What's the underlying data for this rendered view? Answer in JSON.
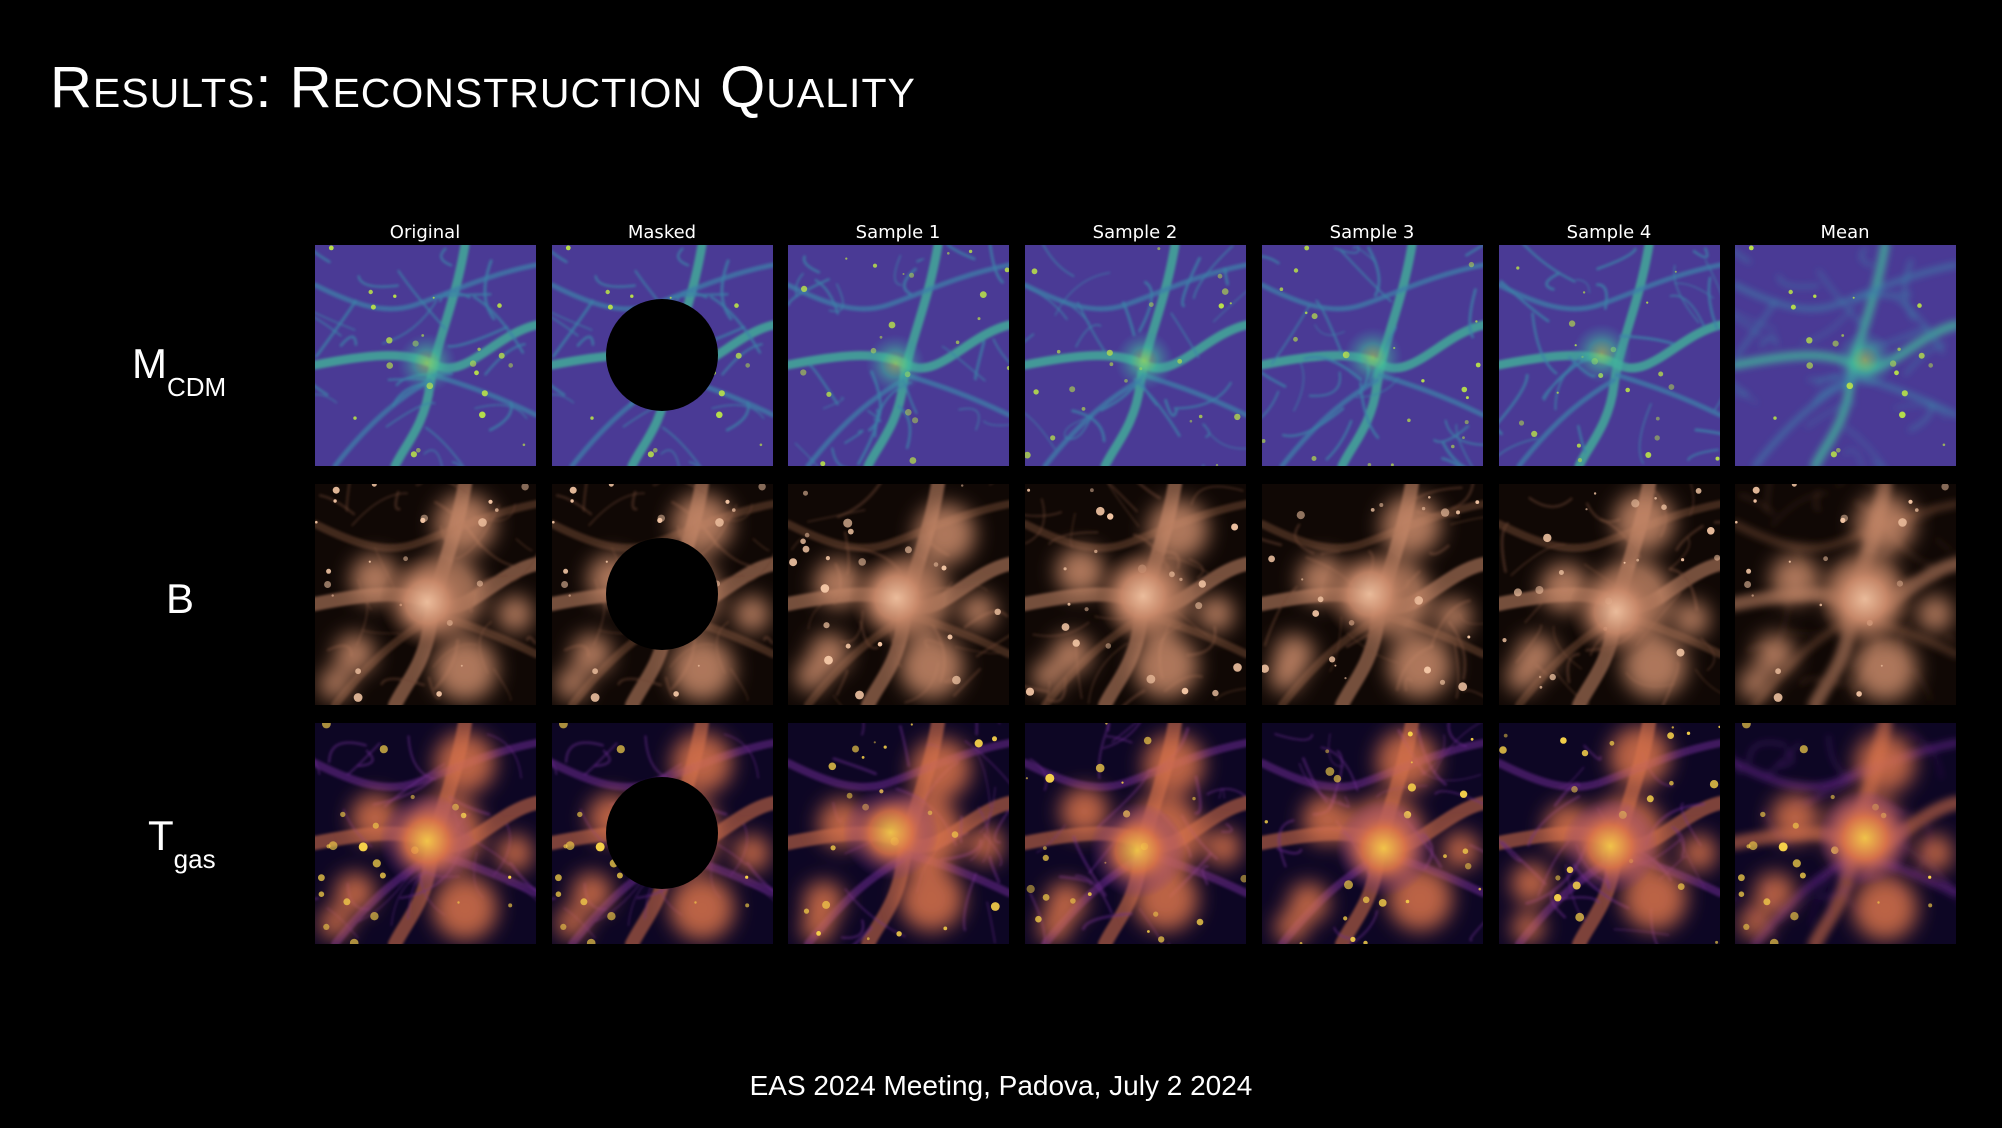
{
  "slide": {
    "title": "Results: Reconstruction Quality",
    "footer": "EAS 2024 Meeting, Padova, July 2 2024"
  },
  "columns": [
    "Original",
    "Masked",
    "Sample 1",
    "Sample 2",
    "Sample 3",
    "Sample 4",
    "Mean"
  ],
  "rows": [
    {
      "label": "M",
      "subscript": "CDM",
      "colormap": "viridis",
      "colors": {
        "background": "#4a3a95",
        "mid": "#3c7fa8",
        "filament": "#41b89a",
        "peak": "#b8e04a"
      }
    },
    {
      "label": "B",
      "subscript": "",
      "colormap": "copper",
      "colors": {
        "background": "#100805",
        "mid": "#6a4330",
        "filament": "#c9896a",
        "peak": "#f2c5a4"
      }
    },
    {
      "label": "T",
      "subscript": "gas",
      "colormap": "plasma",
      "colors": {
        "background": "#0d0624",
        "mid": "#6a2a8e",
        "filament": "#d9734a",
        "peak": "#f7d24a"
      }
    }
  ],
  "mask": {
    "shape": "circle",
    "color": "#000000",
    "column": "Masked"
  }
}
